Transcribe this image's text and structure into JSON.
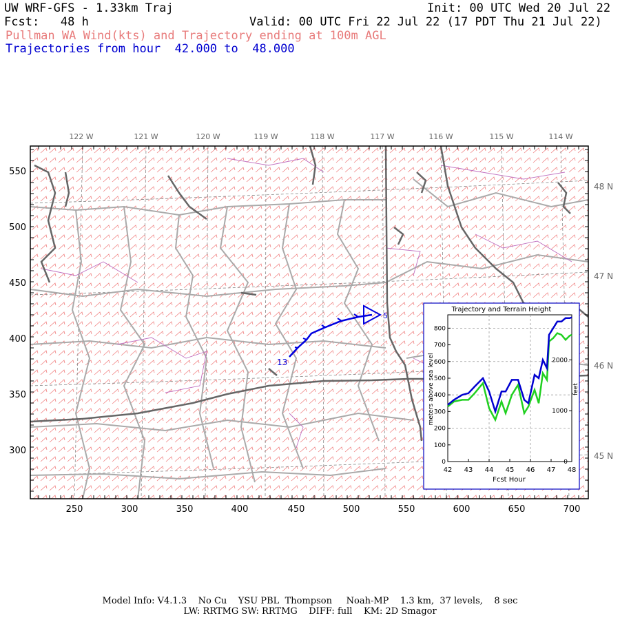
{
  "header": {
    "title": "UW WRF-GFS - 1.33km Traj",
    "init": "Init: 00 UTC Wed 20 Jul 22",
    "fcst": "Fcst:   48 h",
    "valid": "Valid: 00 UTC Fri 22 Jul 22 (17 PDT Thu 21 Jul 22)",
    "subtitle": "Pullman WA Wind(kts) and Trajectory ending at 100m AGL",
    "trajectory_range": "Trajectories from hour  42.000 to  48.000"
  },
  "map": {
    "lon_labels": [
      "122 W",
      "121 W",
      "120 W",
      "119 W",
      "118 W",
      "117 W",
      "116 W",
      "115 W",
      "114 W"
    ],
    "lat_labels": [
      "48 N",
      "47 N",
      "46 N",
      "45 N"
    ],
    "x_ticks": [
      "250",
      "300",
      "350",
      "400",
      "450",
      "500",
      "550",
      "600",
      "650",
      "700"
    ],
    "y_ticks": [
      "550",
      "500",
      "450",
      "400",
      "350",
      "300"
    ],
    "trajectory_start_label": "13",
    "trajectory_end_label": "5",
    "colors": {
      "barbs": "#f08080",
      "roads": "#aaaaaa",
      "borders": "#666666",
      "trajectory": "#0000e0",
      "counties": "#c070c0"
    }
  },
  "inset": {
    "title": "Trajectory and Terrain Height",
    "xlabel": "Fcst Hour",
    "ylabel_left": "meters above sea level",
    "ylabel_right": "feet",
    "x_ticks": [
      "42",
      "43",
      "44",
      "45",
      "46",
      "47",
      "48"
    ],
    "y_ticks_left": [
      "0",
      "100",
      "200",
      "300",
      "400",
      "500",
      "600",
      "700",
      "800"
    ],
    "y_ticks_right": [
      "0",
      "1000",
      "2000"
    ]
  },
  "chart_data": {
    "type": "line",
    "title": "Trajectory and Terrain Height",
    "xlabel": "Fcst Hour",
    "ylabel": "meters above sea level",
    "xlim": [
      42,
      48
    ],
    "ylim": [
      0,
      880
    ],
    "series": [
      {
        "color": "#0000d0",
        "x": [
          42.0,
          42.3,
          42.7,
          43.0,
          43.3,
          43.7,
          44.0,
          44.3,
          44.6,
          44.8,
          45.1,
          45.4,
          45.7,
          45.9,
          46.2,
          46.4,
          46.6,
          46.8,
          46.9,
          47.1,
          47.3,
          47.5,
          47.7,
          47.9,
          48.0
        ],
        "y": [
          340,
          370,
          400,
          410,
          450,
          500,
          420,
          300,
          420,
          420,
          490,
          490,
          370,
          350,
          520,
          500,
          610,
          560,
          760,
          800,
          840,
          840,
          860,
          860,
          865
        ]
      },
      {
        "color": "#20d020",
        "x": [
          42.0,
          42.3,
          42.7,
          43.0,
          43.3,
          43.7,
          44.0,
          44.3,
          44.6,
          44.8,
          45.1,
          45.4,
          45.7,
          45.9,
          46.2,
          46.4,
          46.6,
          46.8,
          46.9,
          47.1,
          47.3,
          47.5,
          47.7,
          47.9,
          48.0
        ],
        "y": [
          330,
          360,
          370,
          370,
          410,
          470,
          320,
          250,
          360,
          290,
          400,
          460,
          290,
          330,
          430,
          350,
          530,
          490,
          720,
          740,
          770,
          760,
          730,
          755,
          760
        ]
      }
    ]
  },
  "footer": {
    "line1": "Model Info: V4.1.3    No Cu    YSU PBL  Thompson     Noah-MP    1.3 km,  37 levels,    8 sec",
    "line2": "LW: RRTMG SW: RRTMG    DIFF: full    KM: 2D Smagor"
  }
}
